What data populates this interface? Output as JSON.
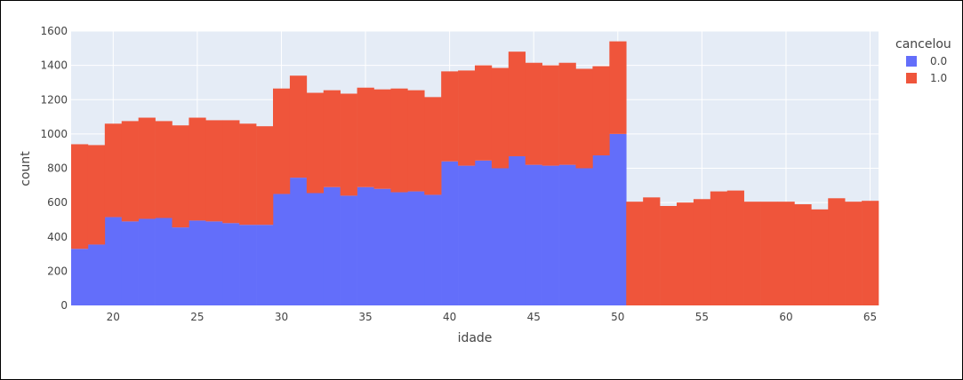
{
  "chart_data": {
    "type": "bar",
    "barmode": "stack",
    "xlabel": "idade",
    "ylabel": "count",
    "xlim": [
      17.5,
      65.5
    ],
    "ylim": [
      0,
      1600
    ],
    "x_ticks": [
      20,
      25,
      30,
      35,
      40,
      45,
      50,
      55,
      60,
      65
    ],
    "y_ticks": [
      0,
      200,
      400,
      600,
      800,
      1000,
      1200,
      1400,
      1600
    ],
    "grid": true,
    "legend": {
      "title": "cancelou",
      "placement": "top-right outside"
    },
    "x": [
      18,
      19,
      20,
      21,
      22,
      23,
      24,
      25,
      26,
      27,
      28,
      29,
      30,
      31,
      32,
      33,
      34,
      35,
      36,
      37,
      38,
      39,
      40,
      41,
      42,
      43,
      44,
      45,
      46,
      47,
      48,
      49,
      50,
      51,
      52,
      53,
      54,
      55,
      56,
      57,
      58,
      59,
      60,
      61,
      62,
      63,
      64,
      65
    ],
    "series": [
      {
        "name": "0.0",
        "color": "#636efa",
        "values": [
          330,
          355,
          515,
          490,
          505,
          510,
          455,
          495,
          490,
          480,
          470,
          470,
          650,
          745,
          655,
          690,
          640,
          690,
          680,
          660,
          665,
          645,
          840,
          815,
          845,
          800,
          870,
          820,
          815,
          820,
          800,
          875,
          1000,
          0,
          0,
          0,
          0,
          0,
          0,
          0,
          0,
          0,
          0,
          0,
          0,
          0,
          0,
          0
        ]
      },
      {
        "name": "1.0",
        "color": "#ef553b",
        "values": [
          610,
          580,
          545,
          585,
          590,
          565,
          595,
          600,
          590,
          600,
          590,
          575,
          615,
          595,
          585,
          565,
          595,
          580,
          580,
          605,
          590,
          570,
          525,
          555,
          555,
          585,
          610,
          595,
          585,
          595,
          580,
          520,
          540,
          605,
          630,
          580,
          600,
          620,
          665,
          670,
          605,
          605,
          605,
          590,
          560,
          625,
          605,
          610
        ]
      }
    ],
    "totals": [
      940,
      935,
      1060,
      1075,
      1095,
      1075,
      1050,
      1095,
      1080,
      1080,
      1060,
      1045,
      1265,
      1340,
      1240,
      1255,
      1235,
      1270,
      1260,
      1265,
      1255,
      1215,
      1365,
      1370,
      1400,
      1385,
      1480,
      1415,
      1400,
      1415,
      1380,
      1395,
      1540,
      605,
      630,
      580,
      600,
      620,
      665,
      670,
      605,
      605,
      605,
      590,
      560,
      625,
      605,
      610
    ]
  }
}
